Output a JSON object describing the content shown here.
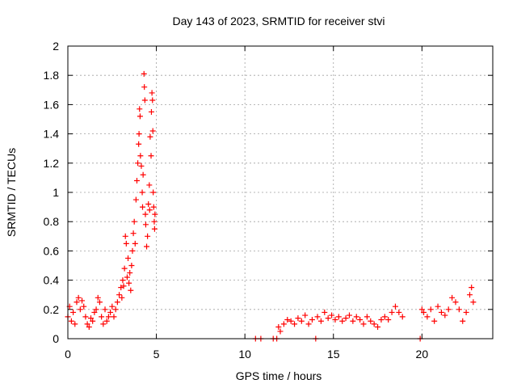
{
  "chart_data": {
    "type": "scatter",
    "title": "Day 143 of 2023, SRMTID for receiver stvi",
    "xlabel": "GPS time / hours",
    "ylabel": "SRMTID / TECUs",
    "xlim": [
      0,
      24
    ],
    "ylim": [
      0,
      2
    ],
    "xticks": [
      0,
      5,
      10,
      15,
      20
    ],
    "yticks": [
      0,
      0.2,
      0.4,
      0.6,
      0.8,
      1,
      1.2,
      1.4,
      1.6,
      1.8,
      2
    ],
    "grid": true,
    "marker": "+",
    "series": [
      {
        "name": "SRMTID",
        "color": "#ff0000",
        "points": [
          [
            0.0,
            0.15
          ],
          [
            0.1,
            0.22
          ],
          [
            0.2,
            0.12
          ],
          [
            0.3,
            0.18
          ],
          [
            0.4,
            0.1
          ],
          [
            0.5,
            0.25
          ],
          [
            0.6,
            0.28
          ],
          [
            0.7,
            0.2
          ],
          [
            0.8,
            0.26
          ],
          [
            0.9,
            0.22
          ],
          [
            1.0,
            0.15
          ],
          [
            1.1,
            0.1
          ],
          [
            1.2,
            0.08
          ],
          [
            1.3,
            0.14
          ],
          [
            1.4,
            0.12
          ],
          [
            1.5,
            0.18
          ],
          [
            1.6,
            0.2
          ],
          [
            1.7,
            0.28
          ],
          [
            1.8,
            0.25
          ],
          [
            1.9,
            0.15
          ],
          [
            2.0,
            0.1
          ],
          [
            2.1,
            0.2
          ],
          [
            2.2,
            0.12
          ],
          [
            2.3,
            0.15
          ],
          [
            2.4,
            0.18
          ],
          [
            2.5,
            0.22
          ],
          [
            2.6,
            0.15
          ],
          [
            2.7,
            0.2
          ],
          [
            2.8,
            0.25
          ],
          [
            2.9,
            0.3
          ],
          [
            3.0,
            0.35
          ],
          [
            3.05,
            0.28
          ],
          [
            3.1,
            0.4
          ],
          [
            3.15,
            0.36
          ],
          [
            3.2,
            0.48
          ],
          [
            3.25,
            0.7
          ],
          [
            3.3,
            0.65
          ],
          [
            3.35,
            0.42
          ],
          [
            3.4,
            0.55
          ],
          [
            3.45,
            0.38
          ],
          [
            3.5,
            0.45
          ],
          [
            3.55,
            0.33
          ],
          [
            3.6,
            0.5
          ],
          [
            3.65,
            0.6
          ],
          [
            3.7,
            0.72
          ],
          [
            3.75,
            0.8
          ],
          [
            3.8,
            0.65
          ],
          [
            3.85,
            0.95
          ],
          [
            3.9,
            1.08
          ],
          [
            3.95,
            1.2
          ],
          [
            4.0,
            1.33
          ],
          [
            4.02,
            1.4
          ],
          [
            4.05,
            1.57
          ],
          [
            4.08,
            1.52
          ],
          [
            4.1,
            1.25
          ],
          [
            4.15,
            1.18
          ],
          [
            4.2,
            1.0
          ],
          [
            4.22,
            0.9
          ],
          [
            4.25,
            1.12
          ],
          [
            4.3,
            1.81
          ],
          [
            4.32,
            1.72
          ],
          [
            4.35,
            1.63
          ],
          [
            4.38,
            0.85
          ],
          [
            4.4,
            0.78
          ],
          [
            4.45,
            0.63
          ],
          [
            4.5,
            0.7
          ],
          [
            4.55,
            0.92
          ],
          [
            4.6,
            1.05
          ],
          [
            4.62,
            0.88
          ],
          [
            4.65,
            1.38
          ],
          [
            4.7,
            1.25
          ],
          [
            4.72,
            1.55
          ],
          [
            4.75,
            1.68
          ],
          [
            4.78,
            1.63
          ],
          [
            4.8,
            1.42
          ],
          [
            4.82,
            1.0
          ],
          [
            4.85,
            0.9
          ],
          [
            4.88,
            0.8
          ],
          [
            4.9,
            0.75
          ],
          [
            4.92,
            0.85
          ],
          [
            10.6,
            0.0
          ],
          [
            10.9,
            0.0
          ],
          [
            11.6,
            0.0
          ],
          [
            11.8,
            0.0
          ],
          [
            11.9,
            0.08
          ],
          [
            12.0,
            0.05
          ],
          [
            12.2,
            0.1
          ],
          [
            12.4,
            0.13
          ],
          [
            12.6,
            0.12
          ],
          [
            12.8,
            0.1
          ],
          [
            13.0,
            0.14
          ],
          [
            13.2,
            0.12
          ],
          [
            13.4,
            0.16
          ],
          [
            13.6,
            0.1
          ],
          [
            13.8,
            0.13
          ],
          [
            14.0,
            0.0
          ],
          [
            14.1,
            0.15
          ],
          [
            14.3,
            0.12
          ],
          [
            14.5,
            0.18
          ],
          [
            14.7,
            0.14
          ],
          [
            14.9,
            0.16
          ],
          [
            15.1,
            0.13
          ],
          [
            15.3,
            0.15
          ],
          [
            15.5,
            0.12
          ],
          [
            15.7,
            0.14
          ],
          [
            15.9,
            0.16
          ],
          [
            16.1,
            0.12
          ],
          [
            16.3,
            0.15
          ],
          [
            16.5,
            0.13
          ],
          [
            16.7,
            0.1
          ],
          [
            16.9,
            0.15
          ],
          [
            17.1,
            0.12
          ],
          [
            17.3,
            0.1
          ],
          [
            17.5,
            0.08
          ],
          [
            17.7,
            0.13
          ],
          [
            17.9,
            0.15
          ],
          [
            18.1,
            0.13
          ],
          [
            18.3,
            0.18
          ],
          [
            18.5,
            0.22
          ],
          [
            18.7,
            0.18
          ],
          [
            18.9,
            0.15
          ],
          [
            19.9,
            0.0
          ],
          [
            20.0,
            0.2
          ],
          [
            20.1,
            0.18
          ],
          [
            20.3,
            0.15
          ],
          [
            20.5,
            0.2
          ],
          [
            20.7,
            0.12
          ],
          [
            20.9,
            0.22
          ],
          [
            21.1,
            0.18
          ],
          [
            21.3,
            0.16
          ],
          [
            21.5,
            0.2
          ],
          [
            21.7,
            0.28
          ],
          [
            21.9,
            0.25
          ],
          [
            22.1,
            0.2
          ],
          [
            22.3,
            0.12
          ],
          [
            22.5,
            0.18
          ],
          [
            22.7,
            0.3
          ],
          [
            22.8,
            0.35
          ],
          [
            22.9,
            0.25
          ]
        ]
      }
    ]
  }
}
